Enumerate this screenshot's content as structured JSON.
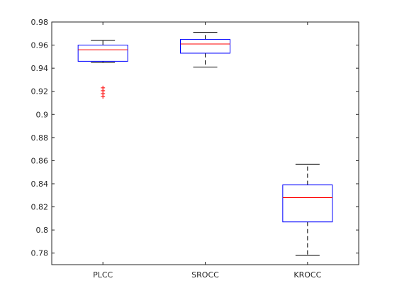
{
  "chart_data": {
    "type": "box",
    "title": "",
    "xlabel": "",
    "ylabel": "",
    "categories": [
      "PLCC",
      "SROCC",
      "KROCC"
    ],
    "ylim": [
      0.77,
      0.98
    ],
    "yticks": [
      0.78,
      0.8,
      0.82,
      0.84,
      0.86,
      0.88,
      0.9,
      0.92,
      0.94,
      0.96,
      0.98
    ],
    "ytick_labels": [
      "0.78",
      "0.8",
      "0.82",
      "0.84",
      "0.86",
      "0.88",
      "0.9",
      "0.92",
      "0.94",
      "0.96",
      "0.98"
    ],
    "boxes": [
      {
        "category": "PLCC",
        "whisker_low": 0.945,
        "q1": 0.946,
        "median": 0.956,
        "q3": 0.96,
        "whisker_high": 0.964,
        "outliers": [
          0.9155,
          0.918,
          0.9205,
          0.923
        ]
      },
      {
        "category": "SROCC",
        "whisker_low": 0.941,
        "q1": 0.953,
        "median": 0.961,
        "q3": 0.965,
        "whisker_high": 0.971,
        "outliers": []
      },
      {
        "category": "KROCC",
        "whisker_low": 0.778,
        "q1": 0.807,
        "median": 0.828,
        "q3": 0.839,
        "whisker_high": 0.857,
        "outliers": []
      }
    ],
    "grid": false,
    "legend": "none",
    "colors": {
      "box": "#0000ff",
      "median": "#ff0000",
      "whisker": "#000000",
      "outlier": "#ff0000",
      "axes": "#262626"
    }
  }
}
